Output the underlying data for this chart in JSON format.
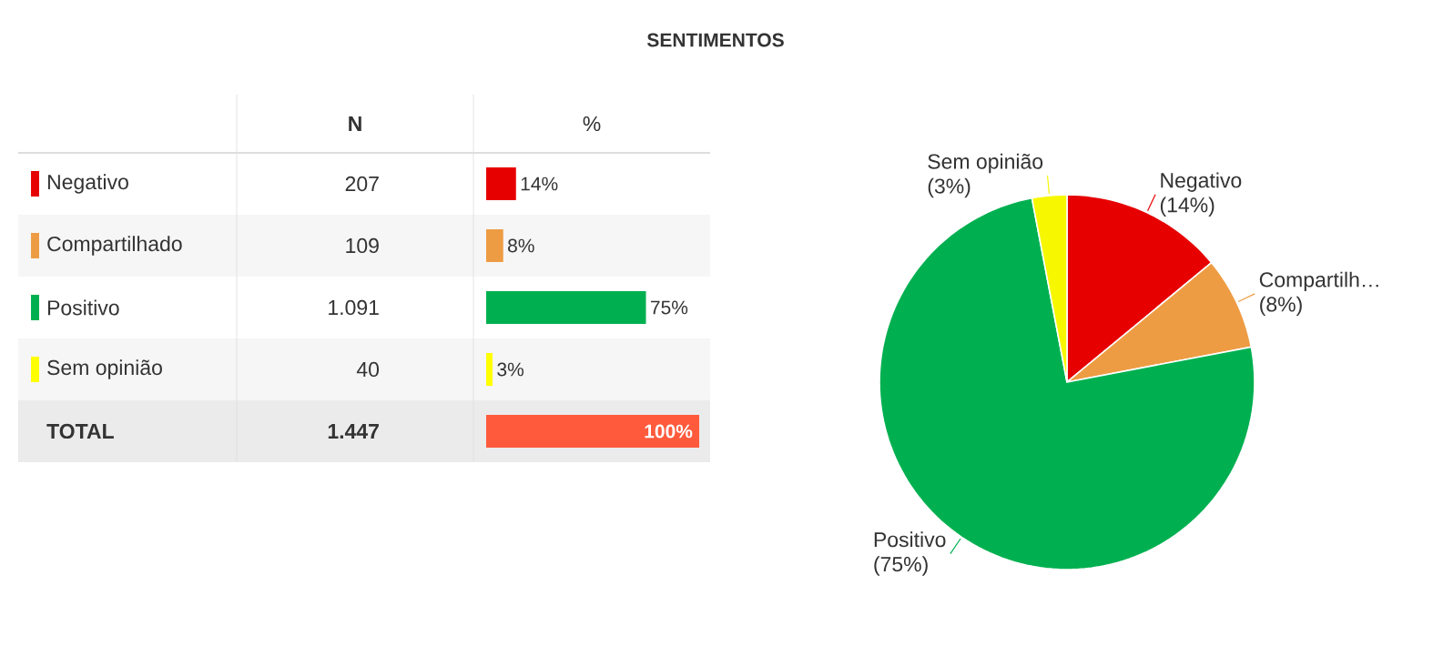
{
  "chart_data": [
    {
      "type": "bar",
      "orientation": "horizontal",
      "title": "SENTIMENTOS",
      "categories": [
        "Negativo",
        "Compartilhado",
        "Positivo",
        "Sem opinião",
        "TOTAL"
      ],
      "values": [
        14,
        8,
        75,
        3,
        100
      ],
      "value_labels": [
        "14%",
        "8%",
        "75%",
        "3%",
        "100%"
      ],
      "colors": [
        "#e60000",
        "#ee9c43",
        "#00b050",
        "#ffff00",
        "#ff5a3c"
      ],
      "xlim": [
        0,
        100
      ],
      "annotations": [
        "N",
        "%",
        "207",
        "109",
        "1.091",
        "40",
        "1.447"
      ]
    },
    {
      "type": "pie",
      "categories": [
        "Negativo",
        "Compartilh…",
        "Positivo",
        "Sem opinião"
      ],
      "values": [
        14,
        8,
        75,
        3
      ],
      "value_labels": [
        "(14%)",
        "(8%)",
        "(75%)",
        "(3%)"
      ],
      "colors": [
        "#e60000",
        "#ee9c43",
        "#00b050",
        "#f7f700"
      ]
    }
  ]
}
